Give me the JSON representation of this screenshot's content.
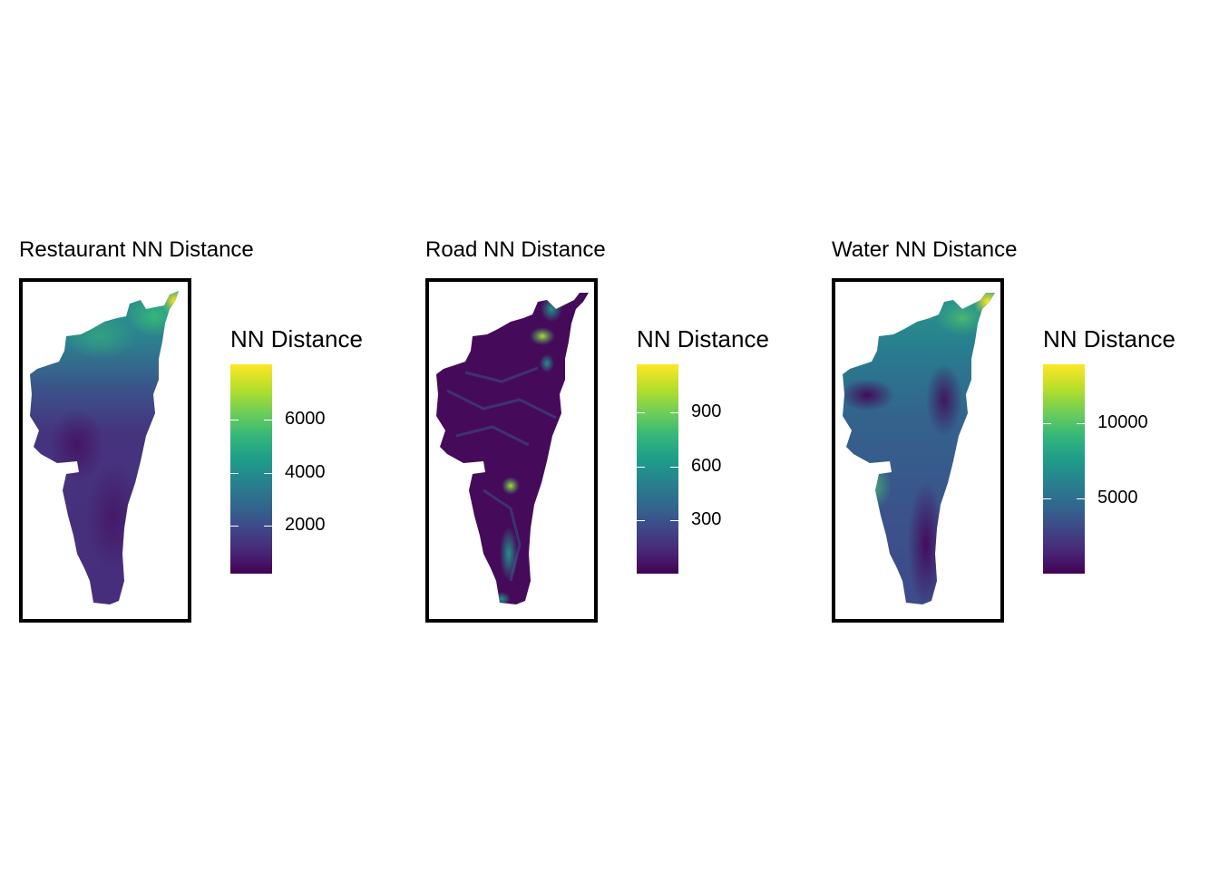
{
  "maps": [
    {
      "id": "restaurant",
      "title": "Restaurant NN Distance",
      "legend_title": "NN Distance",
      "colormap": "viridis",
      "scale": {
        "min": 200,
        "max": 8100
      },
      "ticks": [
        {
          "value": 2000,
          "label": "2000"
        },
        {
          "value": 4000,
          "label": "4000"
        },
        {
          "value": 6000,
          "label": "6000"
        }
      ]
    },
    {
      "id": "road",
      "title": "Road NN Distance",
      "legend_title": "NN Distance",
      "colormap": "viridis",
      "scale": {
        "min": 0,
        "max": 1170
      },
      "ticks": [
        {
          "value": 300,
          "label": "300"
        },
        {
          "value": 600,
          "label": "600"
        },
        {
          "value": 900,
          "label": "900"
        }
      ]
    },
    {
      "id": "water",
      "title": "Water NN Distance",
      "legend_title": "NN Distance",
      "colormap": "viridis",
      "scale": {
        "min": 0,
        "max": 13900
      },
      "ticks": [
        {
          "value": 5000,
          "label": "5000"
        },
        {
          "value": 10000,
          "label": "10000"
        }
      ]
    }
  ]
}
